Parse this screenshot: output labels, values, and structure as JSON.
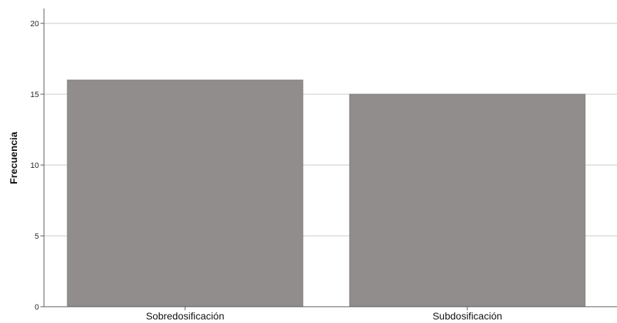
{
  "chart_data": {
    "type": "bar",
    "categories": [
      "Sobredosificación",
      "Subdosificación"
    ],
    "values": [
      16,
      15
    ],
    "title": "",
    "xlabel": "",
    "ylabel": "Frecuencia",
    "ylim": [
      0,
      20
    ],
    "yticks": [
      0,
      5,
      10,
      15,
      20
    ],
    "grid": true,
    "legend": "none",
    "colors": {
      "bar": "#918d8c",
      "bar_stroke": "#7f7b7a",
      "grid": "#c8c8c8",
      "axis": "#555555"
    }
  }
}
